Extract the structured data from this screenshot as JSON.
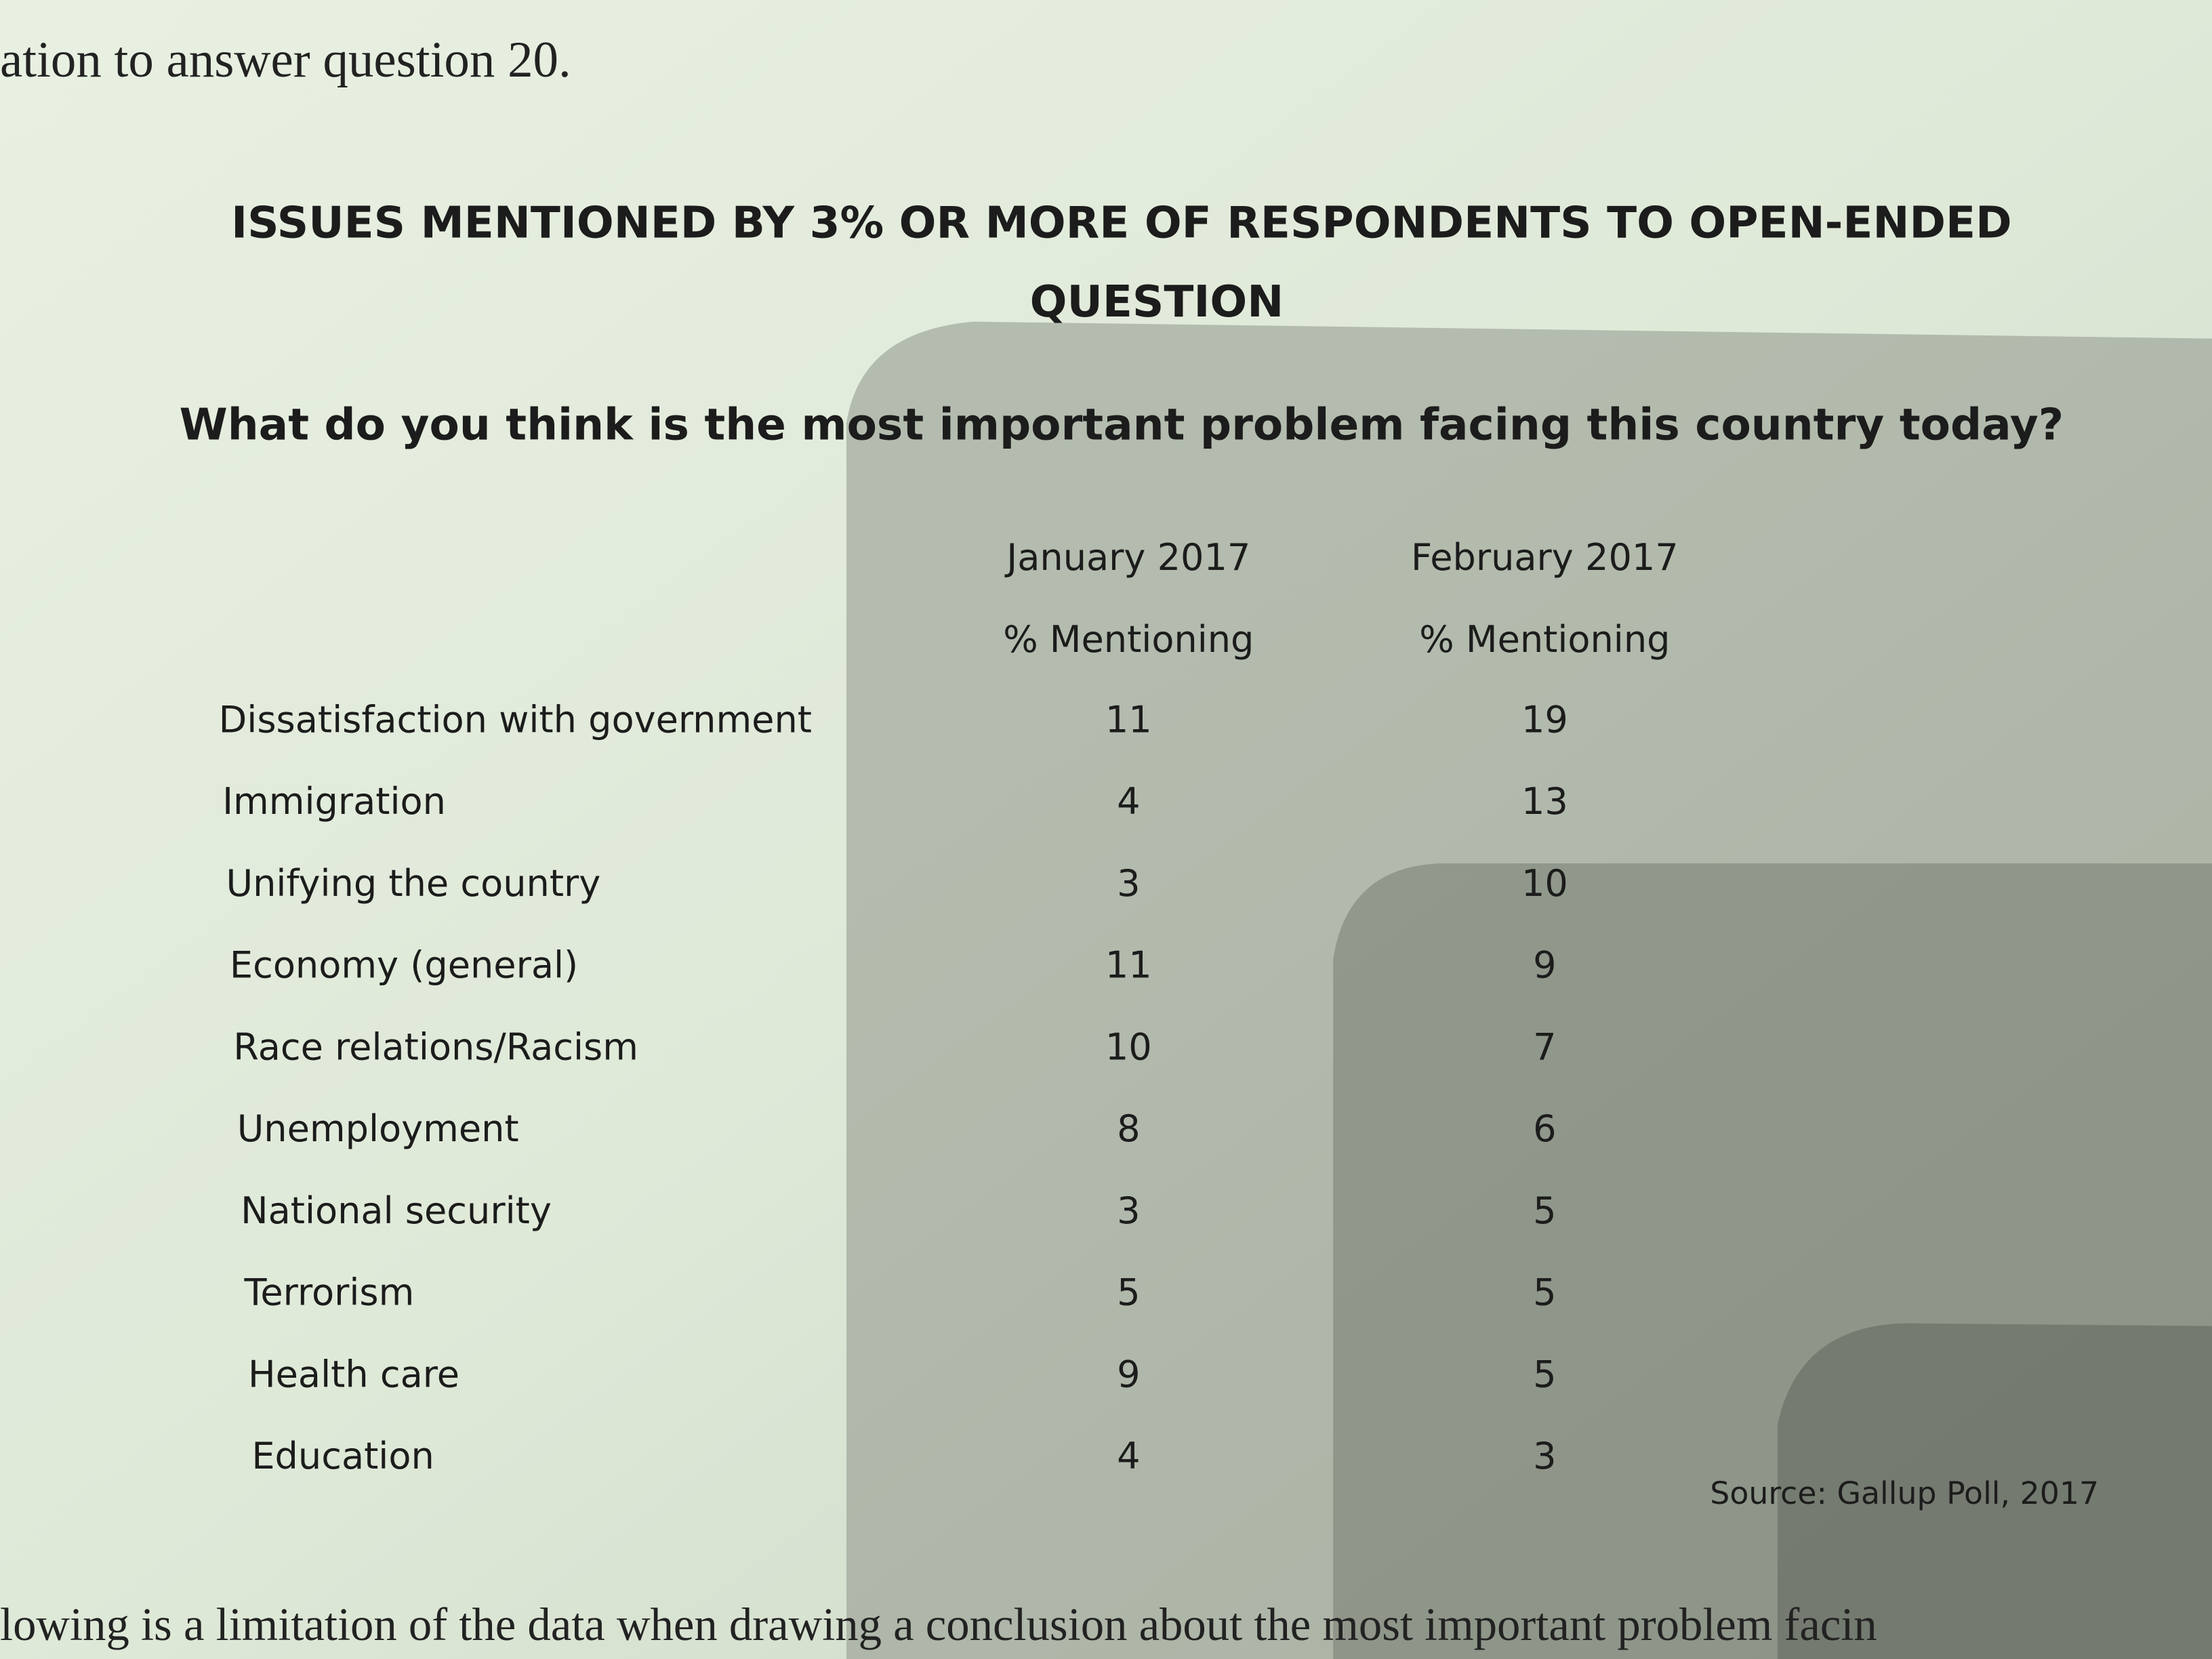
{
  "header": {
    "intro": "ation to answer question 20."
  },
  "document": {
    "title_line1": "ISSUES MENTIONED BY 3% OR MORE OF RESPONDENTS TO OPEN-ENDED",
    "title_line2": "QUESTION",
    "question": "What do you think is the most important problem facing this country today?",
    "table": {
      "columns": [
        {
          "period": "January 2017",
          "measure": "% Mentioning"
        },
        {
          "period": "February 2017",
          "measure": "% Mentioning"
        }
      ],
      "rows": [
        [
          "Dissatisfaction with government",
          11,
          19
        ],
        [
          "Immigration",
          4,
          13
        ],
        [
          "Unifying the country",
          3,
          10
        ],
        [
          "Economy (general)",
          11,
          9
        ],
        [
          "Race relations/Racism",
          10,
          7
        ],
        [
          "Unemployment",
          8,
          6
        ],
        [
          "National security",
          3,
          5
        ],
        [
          "Terrorism",
          5,
          5
        ],
        [
          "Health care",
          9,
          5
        ],
        [
          "Education",
          4,
          3
        ]
      ]
    },
    "source": "Source: Gallup Poll, 2017"
  },
  "footer": {
    "text": "lowing is a limitation of the data when drawing a conclusion about the most important problem facin"
  }
}
